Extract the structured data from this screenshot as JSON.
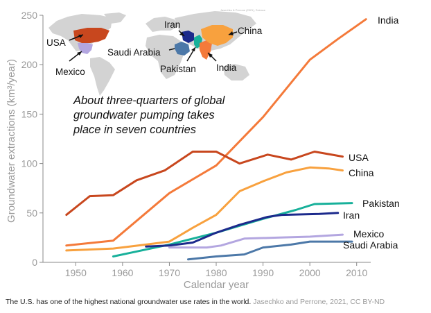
{
  "chart_data": {
    "type": "line",
    "xlabel": "Calendar year",
    "ylabel": "Groundwater extractions (km³/year)",
    "xlim": [
      1943,
      2013
    ],
    "ylim": [
      0,
      250
    ],
    "x_ticks": [
      1950,
      1960,
      1970,
      1980,
      1990,
      2000,
      2010
    ],
    "y_ticks": [
      0,
      50,
      100,
      150,
      200,
      250
    ],
    "grid": false,
    "annotation": [
      "About three-quarters of global",
      "groundwater pumping takes",
      "place in seven countries"
    ],
    "series": [
      {
        "name": "India",
        "color": "#f47a3a",
        "x": [
          1948,
          1958,
          1970,
          1980,
          1990,
          2000,
          2006,
          2012
        ],
        "y": [
          17,
          22,
          70,
          98,
          147,
          205,
          226,
          246
        ]
      },
      {
        "name": "USA",
        "color": "#c8471e",
        "x": [
          1948,
          1953,
          1958,
          1963,
          1969,
          1975,
          1980,
          1985,
          1991,
          1996,
          2001,
          2007
        ],
        "y": [
          48,
          67,
          68,
          83,
          93,
          112,
          112,
          100,
          109,
          104,
          112,
          107
        ]
      },
      {
        "name": "China",
        "color": "#f8a13e",
        "x": [
          1948,
          1958,
          1965,
          1970,
          1975,
          1980,
          1985,
          1990,
          1995,
          2000,
          2004,
          2007
        ],
        "y": [
          12,
          14,
          18,
          21,
          35,
          48,
          72,
          82,
          91,
          96,
          95,
          93
        ]
      },
      {
        "name": "Pakistan",
        "color": "#17b09a",
        "x": [
          1958,
          1962,
          1970,
          1980,
          1990,
          1997,
          2001,
          2009
        ],
        "y": [
          6,
          10,
          18,
          30,
          44,
          53,
          59,
          60
        ]
      },
      {
        "name": "Iran",
        "color": "#1c2a8c",
        "x": [
          1965,
          1970,
          1975,
          1980,
          1985,
          1991,
          1994,
          2002,
          2006
        ],
        "y": [
          16,
          17,
          20,
          30,
          38,
          46,
          48,
          49,
          50
        ]
      },
      {
        "name": "Mexico",
        "color": "#b3a6e0",
        "x": [
          1970,
          1978,
          1981,
          1986,
          1993,
          2000,
          2007
        ],
        "y": [
          15,
          15,
          17,
          24,
          25,
          26,
          28
        ]
      },
      {
        "name": "Saudi Arabia",
        "color": "#4c78a8",
        "x": [
          1974,
          1980,
          1986,
          1990,
          1996,
          2000,
          2004,
          2009
        ],
        "y": [
          3,
          6,
          8,
          15,
          18,
          21,
          21,
          21
        ]
      }
    ]
  },
  "map": {
    "credit": "Jasechko & Perrone (2021), Science",
    "labels": {
      "usa": "USA",
      "mexico": "Mexico",
      "saudi": "Saudi Arabia",
      "iran": "Iran",
      "pakistan": "Pakistan",
      "india": "India",
      "china": "China"
    }
  },
  "caption": {
    "text": "The U.S. has one of the highest national groundwater use rates in the world.",
    "credit": "Jasechko and Perrone, 2021, CC BY-ND"
  }
}
